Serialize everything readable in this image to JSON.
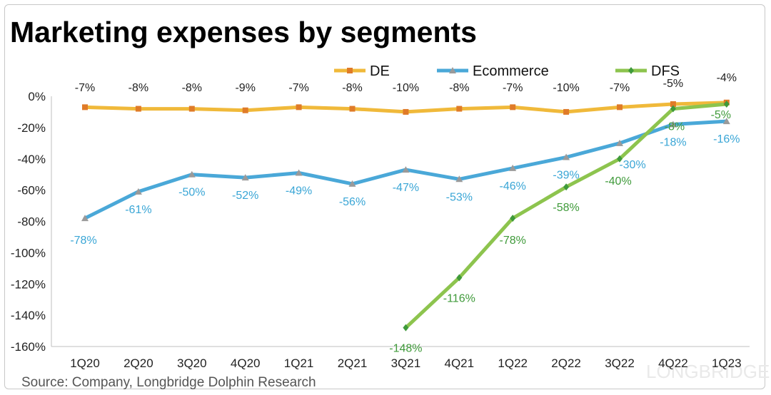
{
  "title": "Marketing expenses by segments",
  "source": "Source: Company, Longbridge Dolphin Research",
  "watermark": "LONGBRIDGE",
  "chart_data": {
    "type": "line",
    "categories": [
      "1Q20",
      "2Q20",
      "3Q20",
      "4Q20",
      "1Q21",
      "2Q21",
      "3Q21",
      "4Q21",
      "1Q22",
      "2Q22",
      "3Q22",
      "4Q22",
      "1Q23"
    ],
    "ylim": [
      -160,
      0
    ],
    "yticks": [
      0,
      -20,
      -40,
      -60,
      -80,
      -100,
      -120,
      -140,
      -160
    ],
    "ytick_labels": [
      "0%",
      "-20%",
      "-40%",
      "-60%",
      "-80%",
      "-100%",
      "-120%",
      "-140%",
      "-160%"
    ],
    "legend_position": "top",
    "series": [
      {
        "name": "DE",
        "color": "#f0b93a",
        "marker_color": "#e07b28",
        "marker": "square",
        "values": [
          -7,
          -8,
          -8,
          -9,
          -7,
          -8,
          -10,
          -8,
          -7,
          -10,
          -7,
          -5,
          -4
        ],
        "labels": [
          "-7%",
          "-8%",
          "-8%",
          "-9%",
          "-7%",
          "-8%",
          "-10%",
          "-8%",
          "-7%",
          "-10%",
          "-7%",
          "-5%",
          "-4%"
        ],
        "label_color": "#222222"
      },
      {
        "name": "Ecommerce",
        "color": "#4aa8d8",
        "marker_color": "#9a9a9a",
        "marker": "triangle",
        "values": [
          -78,
          -61,
          -50,
          -52,
          -49,
          -56,
          -47,
          -53,
          -46,
          -39,
          -30,
          -18,
          -16
        ],
        "labels": [
          "-78%",
          "-61%",
          "-50%",
          "-52%",
          "-49%",
          "-56%",
          "-47%",
          "-53%",
          "-46%",
          "-39%",
          "-30%",
          "-18%",
          "-16%"
        ],
        "label_color": "#3aa6d6"
      },
      {
        "name": "DFS",
        "color": "#8dc44e",
        "marker_color": "#3f9a3a",
        "marker": "diamond",
        "values": [
          null,
          null,
          null,
          null,
          null,
          null,
          -148,
          -116,
          -78,
          -58,
          -40,
          -8,
          -5
        ],
        "labels": [
          null,
          null,
          null,
          null,
          null,
          null,
          "-148%",
          "-116%",
          "-78%",
          "-58%",
          "-40%",
          "-8%",
          "-5%"
        ],
        "label_color": "#3f9a3a"
      }
    ]
  }
}
